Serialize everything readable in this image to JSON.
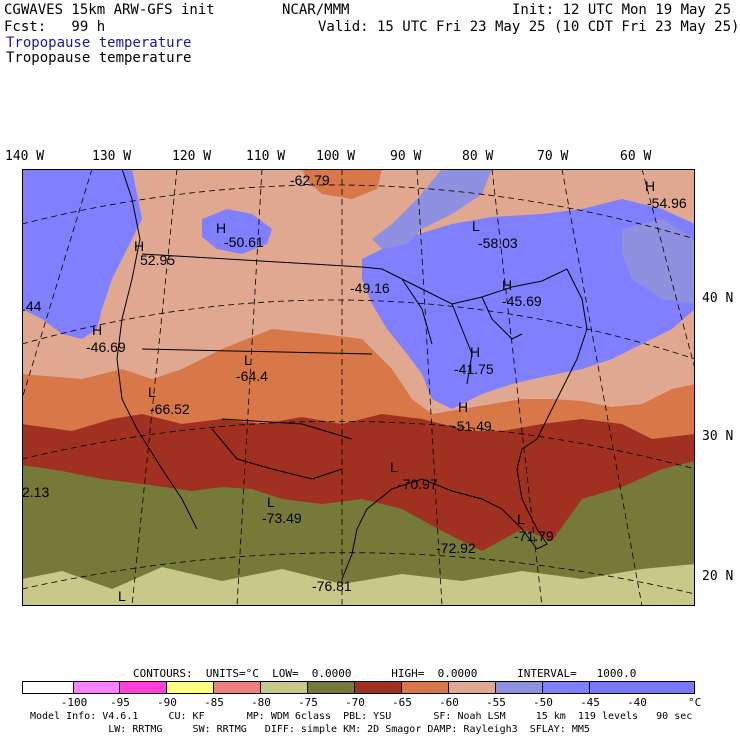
{
  "header": {
    "model": "CGWAVES 15km ARW-GFS init",
    "fcst": "Fcst:   99 h",
    "center": "NCAR/MMM",
    "init": "Init: 12 UTC Mon 19 May 25",
    "valid": "Valid: 15 UTC Fri 23 May 25 (10 CDT Fri 23 May 25)",
    "field_blue": "Tropopause temperature",
    "field_black": "Tropopause temperature"
  },
  "longitude_labels": [
    "140 W",
    "130 W",
    "120 W",
    "110 W",
    "100 W",
    "90 W",
    "80 W",
    "70 W",
    "60 W"
  ],
  "latitude_labels": [
    "40 N",
    "30 N",
    "20 N"
  ],
  "map_labels": [
    {
      "text": "-62.79"
    },
    {
      "text": "-54.96"
    },
    {
      "text": "-50.61"
    },
    {
      "text": "-58.03"
    },
    {
      "text": "52.95"
    },
    {
      "text": "-49.16"
    },
    {
      "text": "-45.69"
    },
    {
      "text": ".44"
    },
    {
      "text": "-46.69"
    },
    {
      "text": "-64.4"
    },
    {
      "text": "-41.75"
    },
    {
      "text": "-66.52"
    },
    {
      "text": "-51.49"
    },
    {
      "text": "-70.97"
    },
    {
      "text": "2.13"
    },
    {
      "text": "-73.49"
    },
    {
      "text": "-72.92"
    },
    {
      "text": "-71.79"
    },
    {
      "text": "-76.81"
    },
    {
      "text": "H"
    },
    {
      "text": "L"
    }
  ],
  "contours_line": "CONTOURS:  UNITS=°C  LOW=  0.0000      HIGH=  0.0000      INTERVAL=   1000.0",
  "colorbar": {
    "colors": [
      "#ffffff",
      "#ff80ff",
      "#ff40d8",
      "#ffff80",
      "#f08080",
      "#c8c888",
      "#767a38",
      "#a03020",
      "#d87848",
      "#e0a890",
      "#9090e0",
      "#8080ff",
      "#7878ff"
    ],
    "labels": [
      "-100",
      "-95",
      "-90",
      "-85",
      "-80",
      "-75",
      "-70",
      "-65",
      "-60",
      "-55",
      "-50",
      "-45",
      "-40"
    ],
    "unit": "°C"
  },
  "footer": {
    "line1": "Model Info: V4.6.1     CU: KF       MP: WDM 6class  PBL: YSU       SF: Noah LSM     15 km  119 levels   90 sec",
    "line2": "             LW: RRTMG     SW: RRTMG   DIFF: simple KM: 2D Smagor DAMP: Rayleigh3  SFLAY: MM5"
  },
  "colors": {
    "deep_red": "#a03020",
    "orange": "#d87848",
    "salmon": "#e0a890",
    "blue": "#8080ff",
    "olive": "#767a38",
    "khaki": "#c8c888",
    "lavender": "#9090e0"
  }
}
